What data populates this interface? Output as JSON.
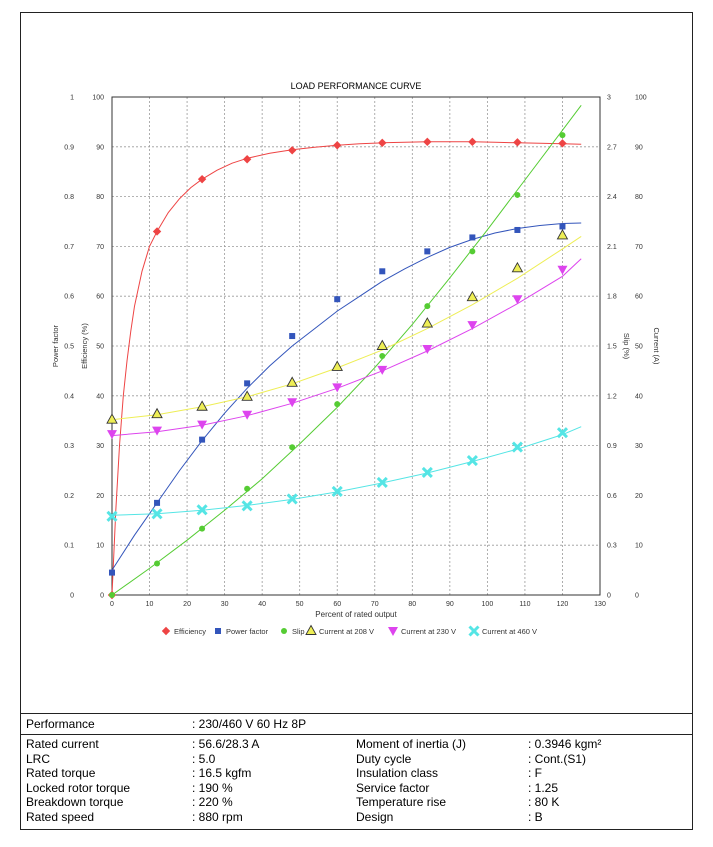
{
  "chart_data": {
    "type": "line",
    "title": "LOAD PERFORMANCE CURVE",
    "xlabel": "Percent of rated output",
    "xlim": [
      0,
      130
    ],
    "x_ticks": [
      "0",
      "10",
      "20",
      "30",
      "40",
      "50",
      "60",
      "70",
      "80",
      "90",
      "100",
      "110",
      "120",
      "130"
    ],
    "axes": {
      "power_factor": {
        "label": "Power factor",
        "ylim": [
          0,
          1
        ],
        "ticks": [
          "0",
          "0.1",
          "0.2",
          "0.3",
          "0.4",
          "0.5",
          "0.6",
          "0.7",
          "0.8",
          "0.9",
          "1"
        ]
      },
      "efficiency": {
        "label": "Efficiency (%)",
        "ylim": [
          0,
          100
        ],
        "ticks": [
          "0",
          "10",
          "20",
          "30",
          "40",
          "50",
          "60",
          "70",
          "80",
          "90",
          "100"
        ]
      },
      "slip": {
        "label": "Slip (%)",
        "ylim": [
          0,
          3
        ],
        "ticks": [
          "0",
          "0.3",
          "0.6",
          "0.9",
          "1.2",
          "1.5",
          "1.8",
          "2.1",
          "2.4",
          "2.7",
          "3"
        ]
      },
      "current": {
        "label": "Current (A)",
        "ylim": [
          0,
          100
        ],
        "ticks": [
          "0",
          "10",
          "20",
          "30",
          "40",
          "50",
          "60",
          "70",
          "80",
          "90",
          "100"
        ]
      }
    },
    "grid": true,
    "legend_position": "bottom",
    "series": [
      {
        "name": "Efficiency",
        "axis": "efficiency",
        "color": "#ee4444",
        "marker": "diamond",
        "curve_x": [
          0,
          1,
          2,
          3,
          4,
          5,
          6,
          8,
          10,
          12,
          15,
          18,
          21,
          24,
          28,
          32,
          36,
          42,
          48,
          54,
          60,
          66,
          72,
          78,
          84,
          90,
          96,
          102,
          108,
          114,
          120,
          125
        ],
        "curve_y": [
          0,
          17,
          30,
          40,
          47,
          53,
          58,
          65,
          70,
          73,
          76.8,
          79.6,
          81.8,
          83.5,
          85.3,
          86.7,
          87.7,
          88.7,
          89.4,
          89.9,
          90.3,
          90.6,
          90.8,
          90.9,
          91,
          91,
          91,
          90.9,
          90.8,
          90.7,
          90.6,
          90.5
        ],
        "points_x": [
          0,
          12,
          24,
          36,
          48,
          60,
          72,
          84,
          96,
          108,
          120
        ],
        "points_y": [
          0,
          73,
          83.5,
          87.5,
          89.3,
          90.3,
          90.8,
          91,
          91,
          90.9,
          90.7
        ]
      },
      {
        "name": "Power factor",
        "axis": "power_factor",
        "color": "#3355bb",
        "marker": "square",
        "curve_x": [
          0,
          6,
          12,
          18,
          24,
          30,
          36,
          42,
          48,
          54,
          60,
          66,
          72,
          78,
          84,
          90,
          96,
          102,
          108,
          114,
          120,
          125
        ],
        "curve_y": [
          0.05,
          0.12,
          0.185,
          0.25,
          0.31,
          0.365,
          0.415,
          0.46,
          0.5,
          0.535,
          0.57,
          0.6,
          0.63,
          0.655,
          0.678,
          0.698,
          0.714,
          0.727,
          0.736,
          0.742,
          0.746,
          0.747
        ],
        "points_x": [
          0,
          12,
          24,
          36,
          48,
          60,
          72,
          84,
          96,
          108,
          120
        ],
        "points_y": [
          0.045,
          0.185,
          0.312,
          0.425,
          0.52,
          0.594,
          0.65,
          0.69,
          0.718,
          0.733,
          0.74
        ]
      },
      {
        "name": "Slip",
        "axis": "slip",
        "color": "#55cc33",
        "marker": "circle",
        "curve_x": [
          0,
          10,
          20,
          30,
          40,
          50,
          60,
          70,
          80,
          90,
          100,
          110,
          120,
          125
        ],
        "curve_y": [
          0,
          0.16,
          0.33,
          0.51,
          0.7,
          0.91,
          1.13,
          1.37,
          1.63,
          1.91,
          2.2,
          2.5,
          2.8,
          2.95
        ],
        "points_x": [
          0,
          12,
          24,
          36,
          48,
          60,
          72,
          84,
          96,
          108,
          120
        ],
        "points_y": [
          0,
          0.19,
          0.4,
          0.64,
          0.89,
          1.15,
          1.44,
          1.74,
          2.07,
          2.41,
          2.77
        ]
      },
      {
        "name": "Current at 208 V",
        "axis": "current",
        "color": "#eeee55",
        "marker": "triangle-up",
        "curve_x": [
          0,
          12,
          24,
          36,
          48,
          60,
          72,
          84,
          96,
          108,
          120,
          125
        ],
        "curve_y": [
          35.2,
          36.2,
          37.8,
          39.8,
          42.4,
          45.6,
          49.2,
          53.5,
          58.3,
          63.6,
          69.5,
          72
        ],
        "points_x": [
          0,
          12,
          24,
          36,
          48,
          60,
          72,
          84,
          96,
          108,
          120
        ],
        "points_y": [
          35.2,
          36.3,
          37.8,
          39.8,
          42.6,
          45.8,
          50,
          54.5,
          59.8,
          65.6,
          72.2
        ]
      },
      {
        "name": "Current at 230 V",
        "axis": "current",
        "color": "#dd44ee",
        "marker": "triangle-down",
        "curve_x": [
          0,
          12,
          24,
          36,
          48,
          60,
          72,
          84,
          96,
          108,
          120,
          125
        ],
        "curve_y": [
          32,
          32.8,
          34.1,
          36,
          38.5,
          41.5,
          45,
          49,
          53.5,
          58.5,
          64,
          67.5
        ],
        "points_x": [
          0,
          12,
          24,
          36,
          48,
          60,
          72,
          84,
          96,
          108,
          120
        ],
        "points_y": [
          32.3,
          33,
          34.2,
          36.2,
          38.7,
          41.7,
          45.2,
          49.4,
          54.2,
          59.4,
          65.3
        ]
      },
      {
        "name": "Current at 460 V",
        "axis": "current",
        "color": "#55e5e5",
        "marker": "x",
        "curve_x": [
          0,
          12,
          24,
          36,
          48,
          60,
          72,
          84,
          96,
          108,
          120,
          125
        ],
        "curve_y": [
          16,
          16.3,
          17,
          18,
          19.2,
          20.7,
          22.5,
          24.5,
          26.8,
          29.3,
          32.2,
          33.8
        ],
        "points_x": [
          0,
          12,
          24,
          36,
          48,
          60,
          72,
          84,
          96,
          108,
          120
        ],
        "points_y": [
          15.8,
          16.3,
          17.1,
          17.9,
          19.3,
          20.8,
          22.6,
          24.6,
          27,
          29.7,
          32.6
        ]
      }
    ]
  },
  "table": {
    "performance_label": "Performance",
    "performance_value": ": 230/460 V 60 Hz 8P",
    "left": [
      {
        "label": "Rated current",
        "value": ": 56.6/28.3 A"
      },
      {
        "label": "LRC",
        "value": ": 5.0"
      },
      {
        "label": "Rated torque",
        "value": ": 16.5 kgfm"
      },
      {
        "label": "Locked rotor torque",
        "value": ": 190 %"
      },
      {
        "label": "Breakdown torque",
        "value": ": 220 %"
      },
      {
        "label": "Rated speed",
        "value": ": 880 rpm"
      }
    ],
    "right": [
      {
        "label": "Moment of inertia (J)",
        "value": ": 0.3946 kgm²"
      },
      {
        "label": "Duty cycle",
        "value": ": Cont.(S1)"
      },
      {
        "label": "Insulation class",
        "value": ": F"
      },
      {
        "label": "Service factor",
        "value": ": 1.25"
      },
      {
        "label": "Temperature rise",
        "value": ": 80 K"
      },
      {
        "label": "Design",
        "value": ": B"
      }
    ]
  }
}
